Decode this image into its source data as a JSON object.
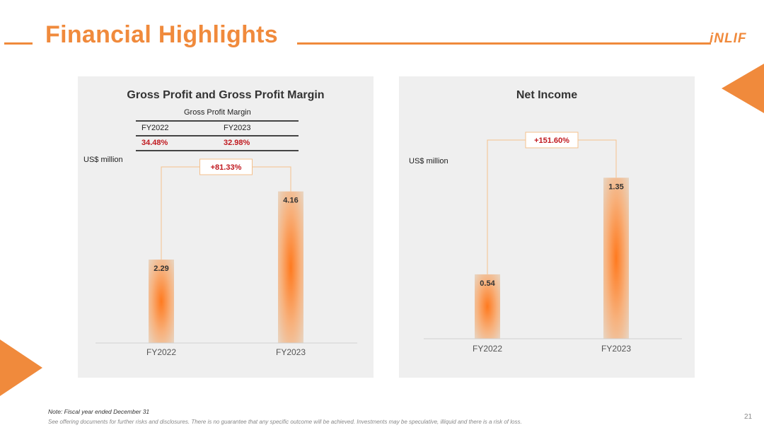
{
  "header": {
    "title": "Financial Highlights",
    "logo_text": "iNLIF"
  },
  "colors": {
    "accent": "#F08A3C",
    "bar_core": "#FF7A1F",
    "bar_edge": "#E8D5C2",
    "change_red": "#C0191F",
    "panel_bg": "#EFEFEF"
  },
  "chart_data": [
    {
      "type": "bar",
      "title": "Gross Profit and Gross Profit Margin",
      "ylabel": "US$ million",
      "categories": [
        "FY2022",
        "FY2023"
      ],
      "values": [
        2.29,
        4.16
      ],
      "value_labels": [
        "2.29",
        "4.16"
      ],
      "change_label": "+81.33%",
      "ylim": [
        0,
        4.6
      ],
      "grid": false,
      "margin_table": {
        "caption": "Gross Profit Margin",
        "headers": [
          "FY2022",
          "FY2023"
        ],
        "values": [
          "34.48%",
          "32.98%"
        ]
      }
    },
    {
      "type": "bar",
      "title": "Net Income",
      "ylabel": "US$ million",
      "categories": [
        "FY2022",
        "FY2023"
      ],
      "values": [
        0.54,
        1.35
      ],
      "value_labels": [
        "0.54",
        "1.35"
      ],
      "change_label": "+151.60%",
      "ylim": [
        0,
        1.5
      ],
      "grid": false
    }
  ],
  "footer": {
    "note": "Note: Fiscal year ended December 31",
    "disclaimer": "See offering documents for further risks and disclosures. There is no guarantee that any specific outcome will be achieved. Investments may be speculative, illiquid and there is a risk of loss.",
    "page_number": "21"
  }
}
